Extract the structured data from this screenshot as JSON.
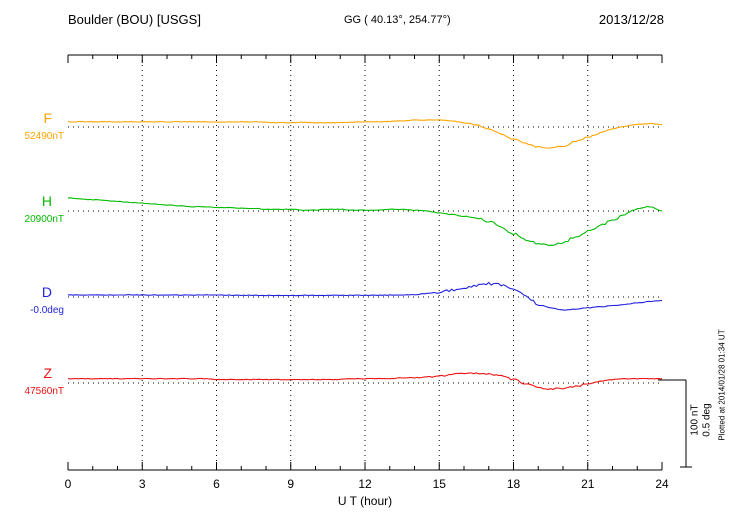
{
  "chart_data": {
    "type": "line",
    "title": "Boulder (BOU)  [USGS]",
    "subtitle": "GG ( 40.13°, 254.77°)",
    "date": "2013/12/28",
    "xlabel": "U T (hour)",
    "x_range": [
      0,
      24
    ],
    "x_ticks": [
      0,
      3,
      6,
      9,
      12,
      15,
      18,
      21,
      24
    ],
    "x_step_hours": 0.5,
    "grid": "dotted vertical lines every 3 hours, dotted horizontal baseline per trace",
    "legend_position": "left-margin",
    "plotted_at": "Plotted at 2014/01/28 01:34 UT",
    "scale_bar": {
      "nt_label": "100 nT",
      "deg_label": "0.5 deg",
      "nt_span": 100,
      "deg_span": 0.5
    },
    "series": [
      {
        "name": "F",
        "baseline_label": "52490nT",
        "baseline_value": 52490,
        "unit": "nT",
        "color": "#FFA500",
        "offsets": [
          6,
          6,
          6,
          6,
          6,
          6,
          6,
          6,
          6,
          6,
          6,
          6,
          5.5,
          6,
          6,
          6,
          5.5,
          5,
          5,
          5.5,
          5,
          5,
          5,
          5.5,
          6,
          6,
          6.5,
          7,
          8,
          8,
          8,
          7,
          5,
          2,
          -2,
          -8,
          -14,
          -19,
          -23,
          -24,
          -22,
          -17,
          -12,
          -7,
          -2,
          1,
          3,
          4,
          3
        ]
      },
      {
        "name": "H",
        "baseline_label": "20900nT",
        "baseline_value": 20900,
        "unit": "nT",
        "color": "#00BB00",
        "offsets": [
          15,
          14,
          13,
          12,
          11,
          10,
          9,
          8,
          7,
          6,
          5,
          5,
          4,
          4,
          3,
          3,
          2,
          2,
          2,
          1,
          1,
          2,
          2,
          1,
          1,
          1,
          2,
          2,
          1,
          0,
          -2,
          -4,
          -6,
          -8,
          -12,
          -18,
          -26,
          -33,
          -37,
          -39,
          -36,
          -30,
          -23,
          -17,
          -10,
          -4,
          3,
          5,
          0
        ]
      },
      {
        "name": "D",
        "baseline_label": "-0.0deg",
        "baseline_value": 0.0,
        "unit": "deg",
        "color": "#2222DD",
        "offsets": [
          0.012,
          0.012,
          0.013,
          0.012,
          0.012,
          0.012,
          0.012,
          0.012,
          0.011,
          0.011,
          0.011,
          0.012,
          0.012,
          0.011,
          0.01,
          0.01,
          0.009,
          0.009,
          0.009,
          0.009,
          0.009,
          0.01,
          0.01,
          0.01,
          0.01,
          0.01,
          0.011,
          0.012,
          0.014,
          0.02,
          0.028,
          0.04,
          0.055,
          0.065,
          0.075,
          0.07,
          0.04,
          0.005,
          -0.04,
          -0.062,
          -0.075,
          -0.07,
          -0.062,
          -0.056,
          -0.05,
          -0.042,
          -0.034,
          -0.026,
          -0.02
        ]
      },
      {
        "name": "Z",
        "baseline_label": "47560nT",
        "baseline_value": 47560,
        "unit": "nT",
        "color": "#EE1111",
        "offsets": [
          5,
          5,
          5,
          5,
          5,
          5,
          5,
          5,
          5,
          5,
          5,
          5,
          4,
          4,
          4,
          4,
          4,
          4,
          4,
          4,
          4,
          4,
          4,
          5,
          5,
          5,
          5,
          6,
          6,
          7,
          8,
          10,
          11,
          11,
          10,
          8,
          4,
          -1,
          -5,
          -7,
          -6,
          -4,
          -1,
          2,
          4,
          5,
          5,
          5,
          5
        ]
      }
    ]
  }
}
